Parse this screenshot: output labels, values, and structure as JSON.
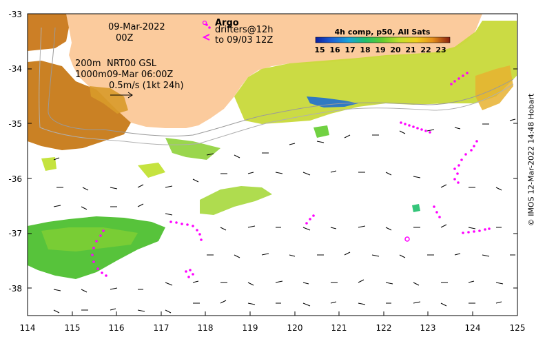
{
  "map": {
    "date_line1": "09-Mar-2022",
    "date_line2": "00Z",
    "depth_line1": "200m",
    "product_line1": "NRT00 GSL",
    "depth_line2": "1000m",
    "product_line2": "09-Mar 06:00Z",
    "scale_label": "0.5m/s (1kt 24h)",
    "argo_label": "Argo",
    "drifters_label": "drifters@12h",
    "drifters_to": "to 09/03 12Z",
    "footer": "© IMOS 12-Mar-2022 14:48 Hobart"
  },
  "colorbar": {
    "title": "4h comp, p50, All Sats",
    "ticks": [
      "15",
      "16",
      "17",
      "18",
      "19",
      "20",
      "21",
      "22",
      "23"
    ],
    "colors": [
      "#0b1f9e",
      "#1a5fd6",
      "#18a4d8",
      "#1fbf6b",
      "#62cc2d",
      "#bfe02a",
      "#f0cf1e",
      "#e6901a",
      "#c0501a",
      "#8a2010"
    ]
  },
  "axes": {
    "x_ticks": [
      "114",
      "115",
      "116",
      "117",
      "118",
      "119",
      "120",
      "121",
      "122",
      "123",
      "124",
      "125"
    ],
    "y_ticks": [
      "-33",
      "-34",
      "-35",
      "-36",
      "-37",
      "-38"
    ]
  },
  "colors": {
    "land": "#fbcb9d",
    "drifter": "#ff00ff",
    "vector": "#000000",
    "contour": "#9a9a9a"
  }
}
